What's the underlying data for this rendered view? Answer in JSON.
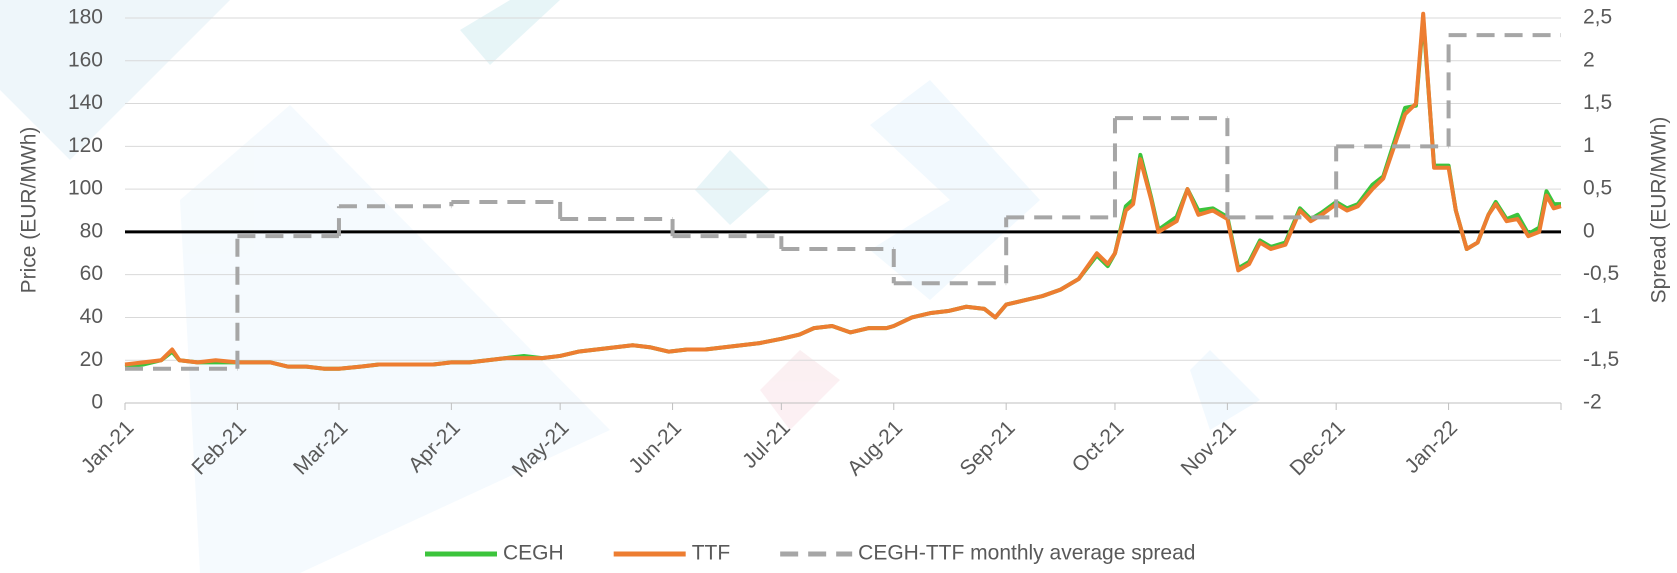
{
  "chart_data": {
    "type": "line",
    "y_label": "Price (EUR/MWh)",
    "y2_label": "Spread (EUR/MWh)",
    "xlim": [
      0,
      396
    ],
    "xticks": [
      {
        "value": 0,
        "label": "Jan-21"
      },
      {
        "value": 31,
        "label": "Feb-21"
      },
      {
        "value": 59,
        "label": "Mar-21"
      },
      {
        "value": 90,
        "label": "Apr-21"
      },
      {
        "value": 120,
        "label": "May-21"
      },
      {
        "value": 151,
        "label": "Jun-21"
      },
      {
        "value": 181,
        "label": "Jul-21"
      },
      {
        "value": 212,
        "label": "Aug-21"
      },
      {
        "value": 243,
        "label": "Sep-21"
      },
      {
        "value": 273,
        "label": "Oct-21"
      },
      {
        "value": 304,
        "label": "Nov-21"
      },
      {
        "value": 334,
        "label": "Dec-21"
      },
      {
        "value": 365,
        "label": "Jan-22"
      },
      {
        "value": 396,
        "label": ""
      }
    ],
    "ylim": [
      0,
      180
    ],
    "yticks": [
      0,
      20,
      40,
      60,
      80,
      100,
      120,
      140,
      160,
      180
    ],
    "y2lim": [
      -2,
      2.5
    ],
    "y2ticks": [
      -2,
      {
        "value": -1.5,
        "label": "-1,5"
      },
      -1,
      {
        "value": -0.5,
        "label": "-0,5"
      },
      0,
      {
        "value": 0.5,
        "label": "0,5"
      },
      1,
      {
        "value": 1.5,
        "label": "1,5"
      },
      2,
      {
        "value": 2.5,
        "label": "2,5"
      }
    ],
    "grid": true,
    "legend": "bottom",
    "x": [
      0,
      5,
      10,
      13,
      15,
      20,
      25,
      31,
      35,
      40,
      45,
      50,
      55,
      59,
      65,
      70,
      75,
      80,
      85,
      90,
      95,
      100,
      105,
      110,
      115,
      120,
      125,
      130,
      135,
      140,
      145,
      150,
      155,
      160,
      165,
      170,
      175,
      181,
      186,
      190,
      195,
      200,
      205,
      210,
      212,
      217,
      222,
      227,
      232,
      237,
      240,
      243,
      248,
      253,
      258,
      263,
      268,
      271,
      273,
      276,
      278,
      280,
      283,
      285,
      290,
      293,
      296,
      300,
      304,
      307,
      310,
      313,
      316,
      320,
      324,
      327,
      330,
      334,
      337,
      340,
      344,
      347,
      350,
      353,
      356,
      358,
      361,
      365,
      367,
      370,
      373,
      376,
      378,
      381,
      384,
      387,
      390,
      392,
      394,
      396
    ],
    "series": [
      {
        "name": "CEGH",
        "color": "#3cc43c",
        "values": [
          17,
          18,
          20,
          24,
          20,
          19,
          19,
          19,
          19,
          19,
          17,
          17,
          16,
          16,
          17,
          18,
          18,
          18,
          18,
          19,
          19,
          20,
          21,
          22,
          21,
          22,
          24,
          25,
          26,
          27,
          26,
          24,
          25,
          25,
          26,
          27,
          28,
          30,
          32,
          35,
          36,
          33,
          35,
          35,
          36,
          40,
          42,
          43,
          45,
          44,
          40,
          46,
          48,
          50,
          53,
          58,
          69,
          64,
          70,
          92,
          95,
          116,
          96,
          81,
          87,
          100,
          90,
          91,
          87,
          63,
          66,
          76,
          73,
          75,
          91,
          86,
          89,
          94,
          91,
          93,
          102,
          106,
          122,
          138,
          139,
          180,
          111,
          111,
          90,
          72,
          75,
          88,
          94,
          86,
          88,
          79,
          82,
          99,
          93,
          93
        ]
      },
      {
        "name": "TTF",
        "color": "#ed7d31",
        "values": [
          18,
          19,
          20,
          25,
          20,
          19,
          20,
          19,
          19,
          19,
          17,
          17,
          16,
          16,
          17,
          18,
          18,
          18,
          18,
          19,
          19,
          20,
          21,
          21,
          21,
          22,
          24,
          25,
          26,
          27,
          26,
          24,
          25,
          25,
          26,
          27,
          28,
          30,
          32,
          35,
          36,
          33,
          35,
          35,
          36,
          40,
          42,
          43,
          45,
          44,
          40,
          46,
          48,
          50,
          53,
          58,
          70,
          65,
          70,
          90,
          93,
          114,
          95,
          80,
          85,
          100,
          88,
          90,
          86,
          62,
          65,
          75,
          72,
          74,
          90,
          85,
          88,
          93,
          90,
          92,
          100,
          105,
          120,
          135,
          140,
          182,
          110,
          110,
          90,
          72,
          75,
          88,
          93,
          85,
          86,
          78,
          80,
          97,
          91,
          92
        ]
      },
      {
        "name": "CEGH-TTF monthly average spread",
        "color": "#a6a6a6",
        "axis": "y2",
        "step": true,
        "x": [
          0,
          31,
          59,
          90,
          120,
          151,
          181,
          212,
          243,
          273,
          304,
          334,
          365
        ],
        "values": [
          -1.6,
          -0.05,
          0.3,
          0.35,
          0.15,
          -0.05,
          -0.2,
          -0.6,
          0.17,
          1.33,
          0.17,
          1.0,
          2.3
        ]
      }
    ]
  }
}
